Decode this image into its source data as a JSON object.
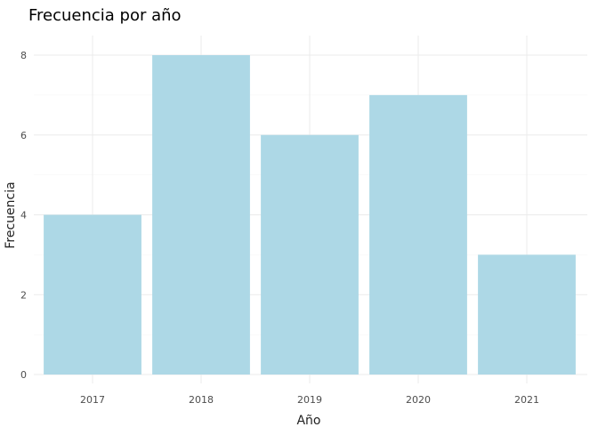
{
  "chart_data": {
    "type": "bar",
    "title": "Frecuencia por año",
    "xlabel": "Año",
    "ylabel": "Frecuencia",
    "categories": [
      "2017",
      "2018",
      "2019",
      "2020",
      "2021"
    ],
    "values": [
      4,
      8,
      6,
      7,
      3
    ],
    "ylim": [
      0,
      8
    ],
    "yticks": [
      0,
      2,
      4,
      6,
      8
    ],
    "grid": true,
    "bar_color": "#add8e6"
  }
}
